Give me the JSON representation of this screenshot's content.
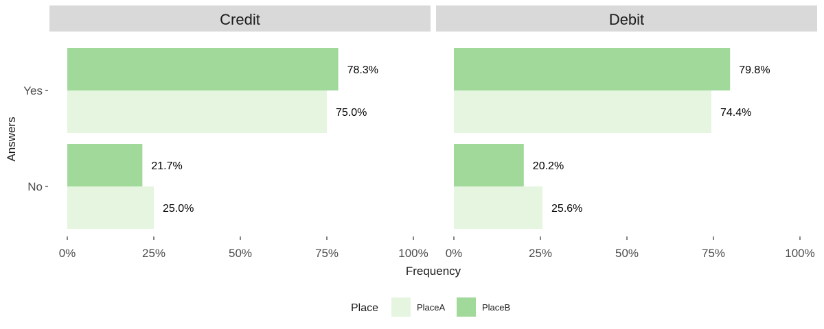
{
  "chart_data": {
    "type": "bar",
    "orientation": "horizontal",
    "facets": [
      "Credit",
      "Debit"
    ],
    "categories": [
      "Yes",
      "No"
    ],
    "series": [
      {
        "name": "PlaceA",
        "color": "#e5f5e0",
        "values": {
          "Credit": [
            75.0,
            25.0
          ],
          "Debit": [
            74.4,
            25.6
          ]
        }
      },
      {
        "name": "PlaceB",
        "color": "#a1d99b",
        "values": {
          "Credit": [
            78.3,
            21.7
          ],
          "Debit": [
            79.8,
            20.2
          ]
        }
      }
    ],
    "data_labels": {
      "PlaceA": {
        "Credit": [
          "75.0%",
          "25.0%"
        ],
        "Debit": [
          "74.4%",
          "25.6%"
        ]
      },
      "PlaceB": {
        "Credit": [
          "78.3%",
          "21.7%"
        ],
        "Debit": [
          "79.8%",
          "20.2%"
        ]
      }
    },
    "x_ticks": [
      0,
      25,
      50,
      75,
      100
    ],
    "x_tick_labels": [
      "0%",
      "25%",
      "50%",
      "75%",
      "100%"
    ],
    "xlim": [
      0,
      100
    ],
    "xlabel": "Frequency",
    "ylabel": "Answers",
    "legend": {
      "title": "Place",
      "position": "bottom",
      "entries": [
        "PlaceA",
        "PlaceB"
      ]
    },
    "strip_color": "#d9d9d9",
    "grid": false
  }
}
